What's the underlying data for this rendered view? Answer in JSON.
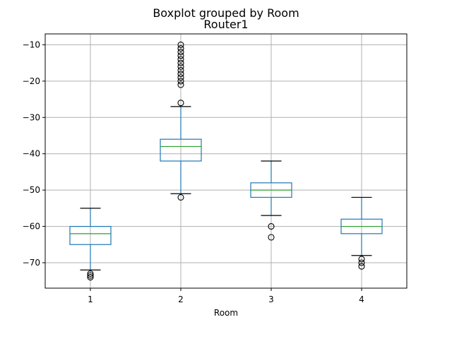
{
  "suptitle": "Boxplot grouped by Room",
  "chart_data": {
    "type": "boxplot",
    "title": "Router1",
    "xlabel": "Room",
    "ylabel": "",
    "grid": true,
    "ylim": [
      -77,
      -7
    ],
    "yticks": [
      -10,
      -20,
      -30,
      -40,
      -50,
      -60,
      -70
    ],
    "categories": [
      "1",
      "2",
      "3",
      "4"
    ],
    "boxes": [
      {
        "label": "1",
        "whisker_low": -72,
        "q1": -65,
        "median": -62,
        "q3": -60,
        "whisker_high": -55,
        "outliers": [
          -73,
          -73.5,
          -74
        ]
      },
      {
        "label": "2",
        "whisker_low": -51,
        "q1": -42,
        "median": -38,
        "q3": -36,
        "whisker_high": -27,
        "outliers": [
          -52,
          -26,
          -21,
          -20,
          -19,
          -18,
          -17,
          -16,
          -15,
          -14,
          -13,
          -12,
          -11,
          -10
        ]
      },
      {
        "label": "3",
        "whisker_low": -57,
        "q1": -52,
        "median": -50,
        "q3": -48,
        "whisker_high": -42,
        "outliers": [
          -60,
          -63
        ]
      },
      {
        "label": "4",
        "whisker_low": -68,
        "q1": -62,
        "median": -60,
        "q3": -58,
        "whisker_high": -52,
        "outliers": [
          -69,
          -70,
          -71
        ]
      }
    ],
    "colors": {
      "box": "#1f77b4",
      "median": "#2ca02c",
      "grid": "#b0b0b0",
      "axes": "#000000",
      "outlier": "#000000"
    }
  }
}
